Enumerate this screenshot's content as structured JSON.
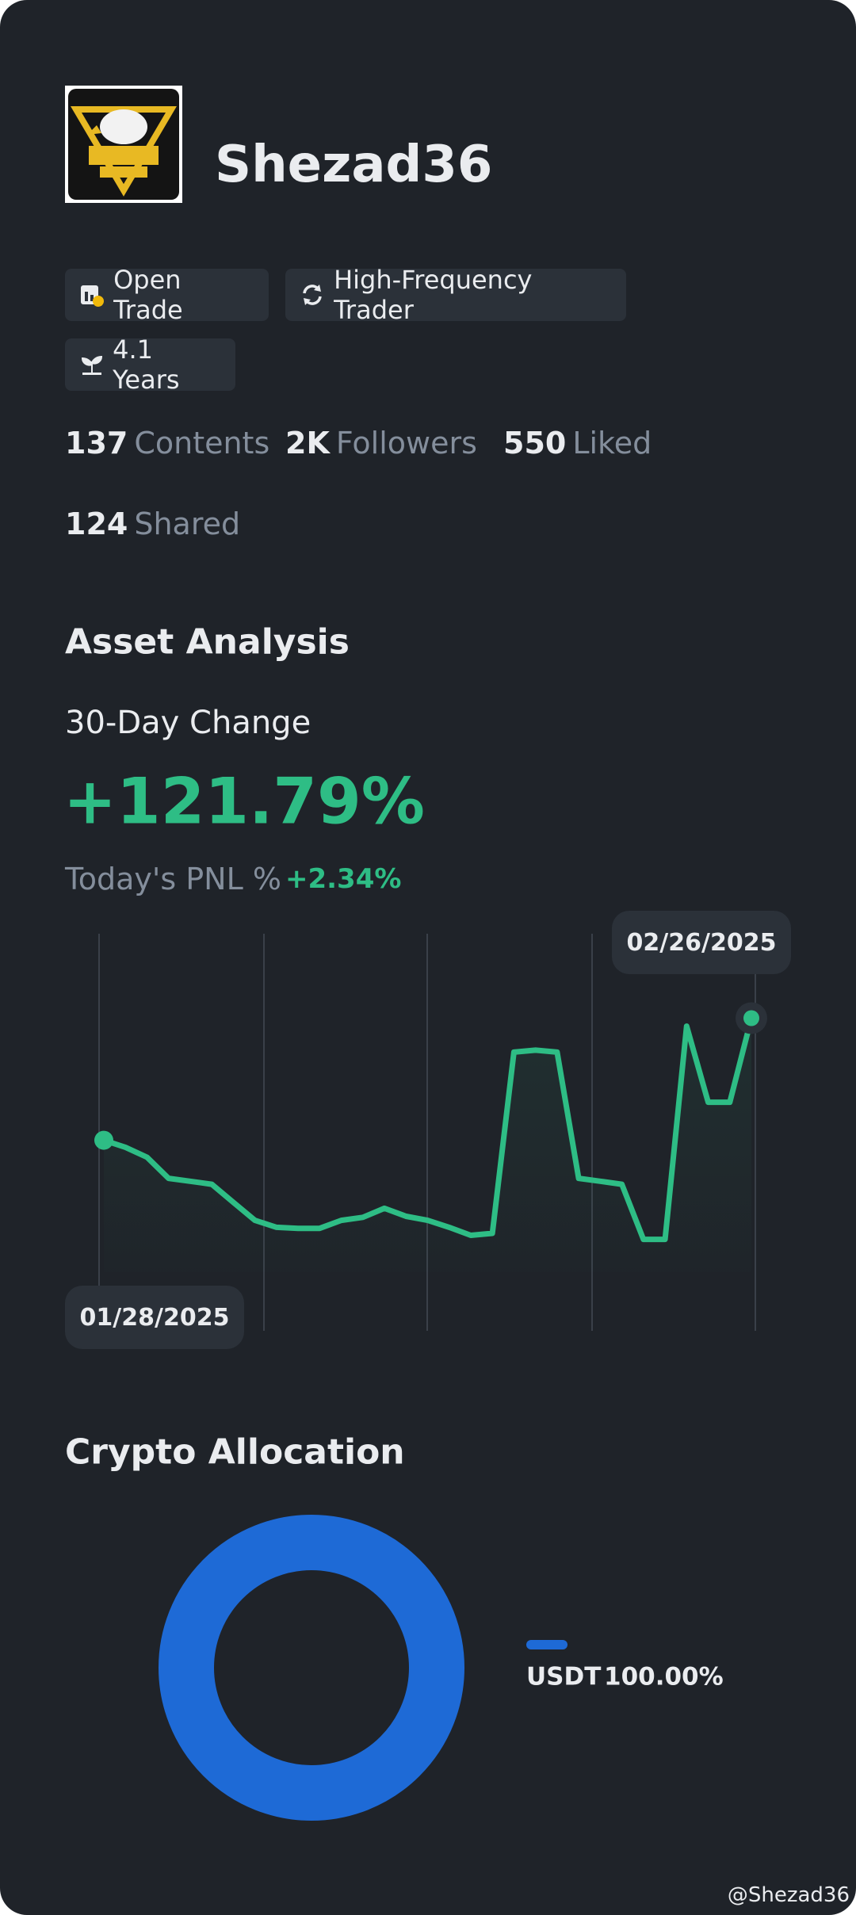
{
  "profile": {
    "name": "Shezad36",
    "tags": [
      "Open Trade",
      "High-Frequency Trader",
      "4.1 Years"
    ],
    "stats": [
      {
        "value": "137",
        "label": "Contents"
      },
      {
        "value": "2K",
        "label": "Followers"
      },
      {
        "value": "550",
        "label": "Liked"
      },
      {
        "value": "124",
        "label": "Shared"
      }
    ]
  },
  "asset_analysis": {
    "title": "Asset Analysis",
    "change_label": "30-Day Change",
    "change_value": "+121.79%",
    "pnl_label": "Today's PNL %",
    "pnl_value": "+2.34%",
    "chart": {
      "type": "line",
      "color": "#2ebd85",
      "values": [
        0,
        -7,
        -17,
        -38,
        -41,
        -44,
        -62,
        -80,
        -87,
        -88,
        -88,
        -80,
        -77,
        -68,
        -76,
        -80,
        -87,
        -95,
        -93,
        88,
        90,
        88,
        -38,
        -41,
        -44,
        -99,
        -99,
        114,
        38,
        38,
        122
      ],
      "ylim": [
        -150,
        200
      ],
      "start_label": "01/28/2025",
      "end_label": "02/26/2025"
    }
  },
  "crypto_allocation": {
    "title": "Crypto Allocation",
    "type": "pie",
    "items": [
      {
        "name": "USDT",
        "value": 100,
        "value_label": "100.00%",
        "color": "#1e6ad6"
      }
    ]
  },
  "watermark": "@Shezad36"
}
